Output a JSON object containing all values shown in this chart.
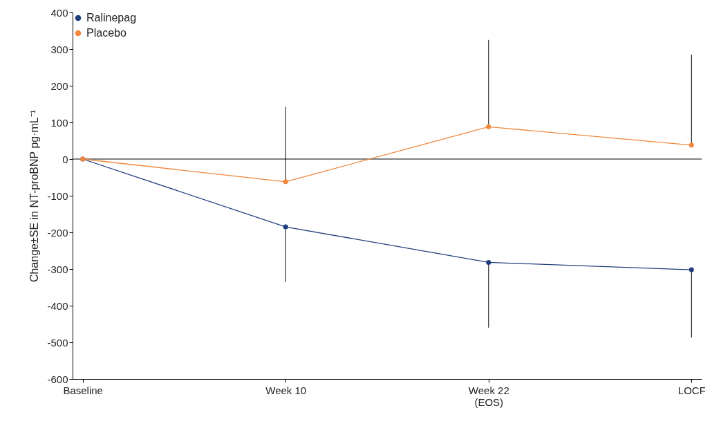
{
  "chart_data": {
    "type": "line",
    "ylabel": "Change±SE in NT-proBNP pg·mL⁻¹",
    "categories": [
      "Baseline",
      "Week 10",
      "Week 22\n(EOS)",
      "LOCF"
    ],
    "ylim": [
      -600,
      400
    ],
    "yticks": [
      -600,
      -500,
      -400,
      -300,
      -200,
      -100,
      0,
      100,
      200,
      300,
      400
    ],
    "series": [
      {
        "name": "Ralinepag",
        "color": "#1f3d7a",
        "values": [
          0,
          -185,
          -282,
          -302
        ],
        "errors": [
          null,
          [
            -335,
            -185
          ],
          [
            -460,
            -282
          ],
          [
            -487,
            -302
          ]
        ]
      },
      {
        "name": "Placebo",
        "color": "#f0883c",
        "values": [
          0,
          -62,
          88,
          38
        ],
        "errors": [
          null,
          [
            -62,
            142
          ],
          [
            88,
            325
          ],
          [
            38,
            285
          ]
        ]
      }
    ],
    "ref_lines": [
      {
        "axis": "y",
        "value": 0,
        "color": "#000000"
      }
    ],
    "legend": "top left",
    "grid": false,
    "marker": "circle",
    "line_style": "solid"
  }
}
